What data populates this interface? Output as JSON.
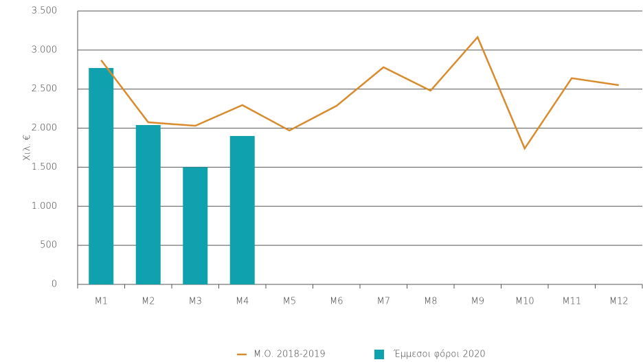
{
  "chart_data": {
    "type": "bar",
    "y_label": "Χιλ. €",
    "categories": [
      "M1",
      "M2",
      "M3",
      "M4",
      "M5",
      "M6",
      "M7",
      "M8",
      "M9",
      "M10",
      "M11",
      "M12"
    ],
    "series": [
      {
        "name": "Μ.Ο. 2018-2019",
        "type": "line",
        "color": "#d98a2b",
        "values": [
          2870,
          2075,
          2030,
          2295,
          1970,
          2285,
          2780,
          2480,
          3165,
          1740,
          2640,
          2550
        ]
      },
      {
        "name": "Έμμεσοι φόροι 2020",
        "type": "bar",
        "color": "#0fa1ad",
        "values": [
          2770,
          2040,
          1500,
          1900,
          null,
          null,
          null,
          null,
          null,
          null,
          null,
          null
        ]
      }
    ],
    "ylim": [
      0,
      3500
    ],
    "yticks": [
      0,
      500,
      {
        "value": 1000,
        "label": "1.000"
      },
      {
        "value": 1500,
        "label": "1.500"
      },
      {
        "value": 2000,
        "label": "2.000"
      },
      {
        "value": 2500,
        "label": "2.500"
      },
      {
        "value": 3000,
        "label": "3.000"
      },
      {
        "value": 3500,
        "label": "3.500"
      }
    ],
    "grid": true,
    "legend": "bottom"
  }
}
